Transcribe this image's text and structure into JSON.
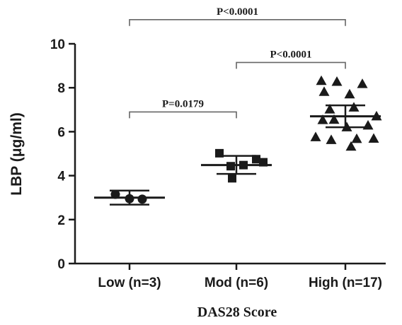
{
  "chart_data": {
    "type": "scatter",
    "ylabel": "LBP (μg/ml)",
    "xlabel": "DAS28 Score",
    "ylim": [
      0,
      10
    ],
    "yticks": [
      0,
      2,
      4,
      6,
      8,
      10
    ],
    "categories": [
      "Low (n=3)",
      "Mod (n=6)",
      "High (n=17)"
    ],
    "groups": [
      {
        "label": "Low (n=3)",
        "marker": "circle",
        "points": [
          3.15,
          2.95,
          2.93
        ],
        "mean": 3.0,
        "sd": [
          2.68,
          3.32
        ]
      },
      {
        "label": "Mod (n=6)",
        "marker": "square",
        "points": [
          5.02,
          4.75,
          4.43,
          4.48,
          4.61,
          3.88
        ],
        "mean": 4.48,
        "sd": [
          4.08,
          4.9
        ]
      },
      {
        "label": "High (n=17)",
        "marker": "triangle",
        "points": [
          8.32,
          8.28,
          8.18,
          7.82,
          7.71,
          7.11,
          7.02,
          6.71,
          6.55,
          6.54,
          6.29,
          6.21,
          5.76,
          5.69,
          5.68,
          5.63,
          5.33
        ],
        "mean": 6.7,
        "sd": [
          6.2,
          7.2
        ]
      }
    ],
    "comparisons": [
      {
        "from": 0,
        "to": 2,
        "level": 11.1,
        "label": "P<0.0001"
      },
      {
        "from": 1,
        "to": 2,
        "level": 9.15,
        "label": "P<0.0001"
      },
      {
        "from": 0,
        "to": 1,
        "level": 6.9,
        "label": "P=0.0179"
      }
    ]
  }
}
